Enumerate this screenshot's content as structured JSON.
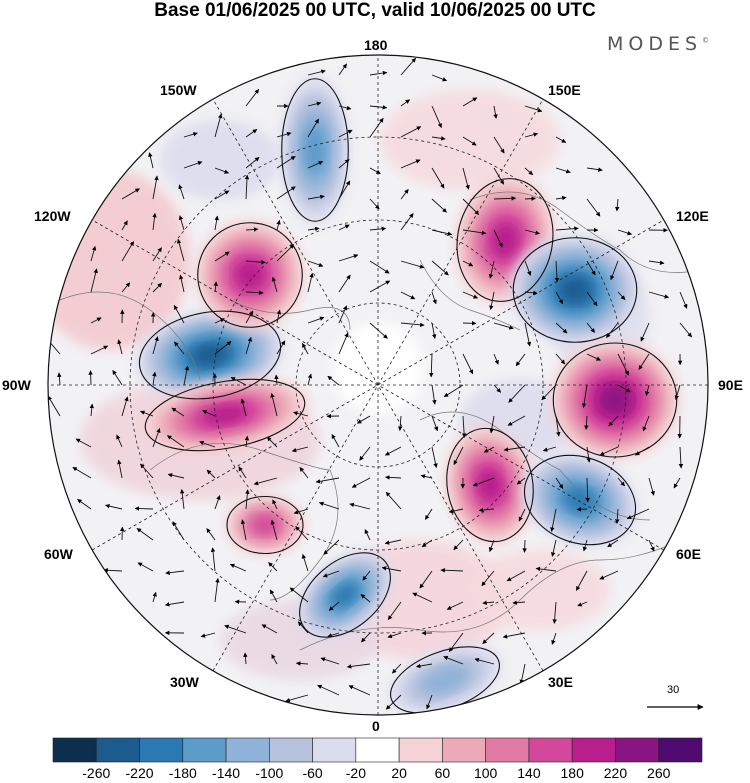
{
  "title": "Base 01/06/2025 00 UTC, valid 10/06/2025 00 UTC",
  "brand": "MODES",
  "brand_mark": "©",
  "longitude_labels": {
    "top": "180",
    "top_left": "150W",
    "top_right": "150E",
    "upper_left": "120W",
    "upper_right": "120E",
    "left": "90W",
    "right": "90E",
    "lower_left": "60W",
    "lower_right": "60E",
    "bottom_left": "30W",
    "bottom_right": "30E",
    "bottom": "0"
  },
  "vector_scale": {
    "label": "30",
    "icon": "arrow-right-icon"
  },
  "colorbar": {
    "ticks": [
      "-260",
      "-220",
      "-180",
      "-140",
      "-100",
      "-60",
      "-20",
      "20",
      "60",
      "100",
      "140",
      "180",
      "220",
      "260"
    ],
    "colors": [
      "#0b2f4d",
      "#1b5b8e",
      "#2b79b3",
      "#5b9ccb",
      "#8fb2d8",
      "#b7c2de",
      "#dcdcef",
      "#ffffff",
      "#f5d2d6",
      "#ecaab8",
      "#e27aa6",
      "#d4489c",
      "#b81f8c",
      "#8a1481",
      "#4f0a70"
    ]
  },
  "chart_data": {
    "type": "map",
    "projection": "north polar stereographic",
    "anomaly_centers": [
      {
        "lon_label": "90W-120W",
        "sign": "negative",
        "approx_value": -220
      },
      {
        "lon_label": "90W",
        "sign": "positive",
        "approx_value": 180
      },
      {
        "lon_label": "120W-150W",
        "sign": "positive",
        "approx_value": 180
      },
      {
        "lon_label": "120E",
        "sign": "positive",
        "approx_value": 180
      },
      {
        "lon_label": "110E",
        "sign": "negative",
        "approx_value": -220
      },
      {
        "lon_label": "90E",
        "sign": "positive",
        "approx_value": 220
      },
      {
        "lon_label": "60E",
        "sign": "positive",
        "approx_value": 180
      },
      {
        "lon_label": "50E",
        "sign": "negative",
        "approx_value": -180
      },
      {
        "lon_label": "20W-30W",
        "sign": "negative",
        "approx_value": -180
      },
      {
        "lon_label": "150W",
        "sign": "negative",
        "approx_value": -140
      },
      {
        "lon_label": "20E",
        "sign": "negative",
        "approx_value": -100
      },
      {
        "lon_label": "60W",
        "sign": "positive",
        "approx_value": 140
      }
    ]
  }
}
